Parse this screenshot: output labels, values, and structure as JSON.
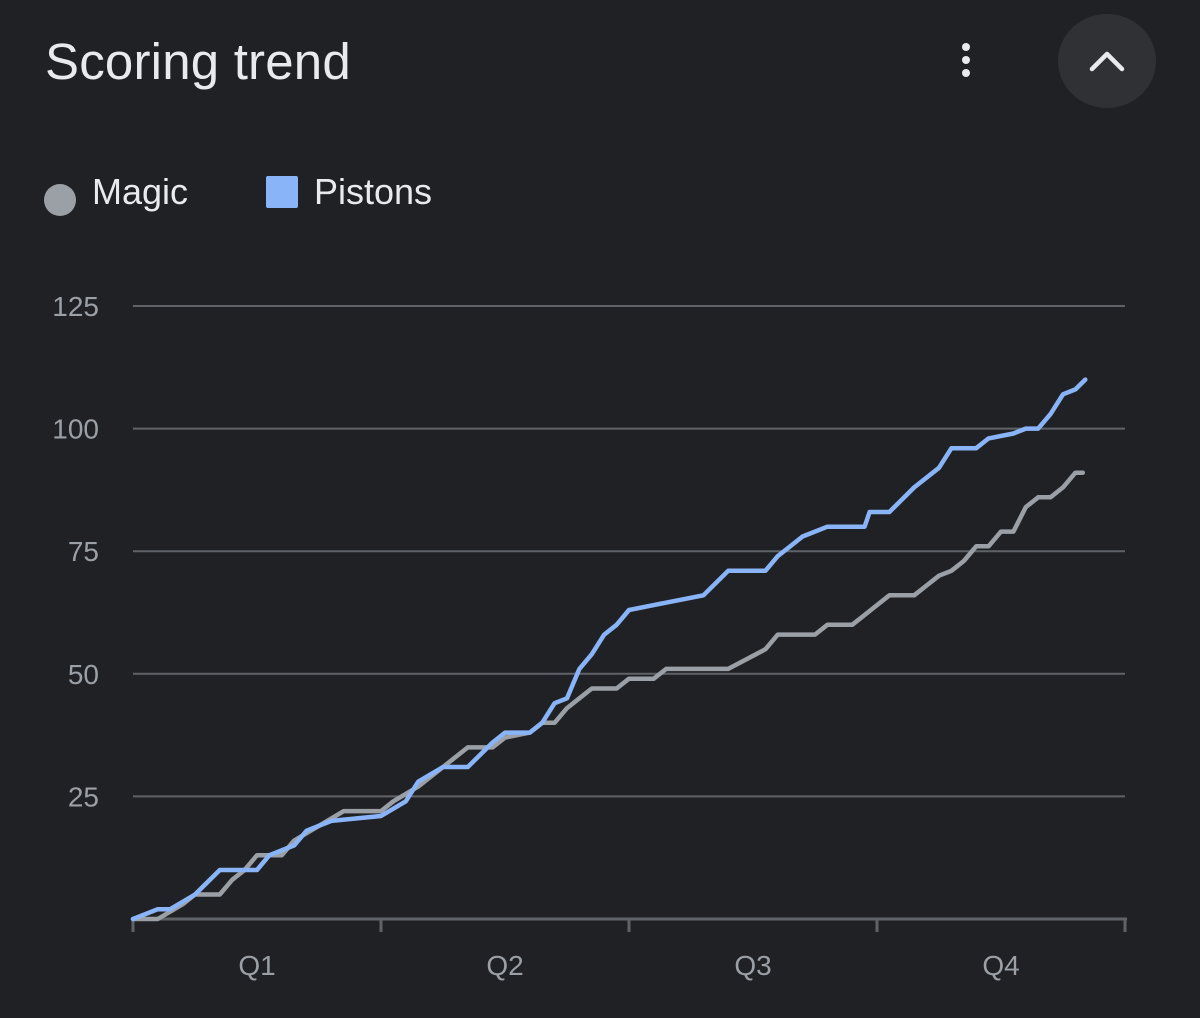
{
  "header": {
    "title": "Scoring trend",
    "menu_icon": "more-vert-icon",
    "collapse_icon": "chevron-up-icon"
  },
  "colors": {
    "background": "#202124",
    "magic": "#9aa0a6",
    "pistons": "#8ab4f8",
    "grid": "#5f6368"
  },
  "chart_data": {
    "type": "line",
    "title": "Scoring trend",
    "legend": {
      "placement": "top-left"
    },
    "categories": [
      "Q1",
      "Q2",
      "Q3",
      "Q4"
    ],
    "xlim": [
      0,
      4
    ],
    "ylim": [
      0,
      125
    ],
    "yticks": [
      25,
      50,
      75,
      100,
      125
    ],
    "grid": true,
    "series": [
      {
        "name": "Magic",
        "marker": "circle",
        "color": "#9aa0a6",
        "points": [
          [
            0,
            0
          ],
          [
            0.1,
            0
          ],
          [
            0.2,
            3
          ],
          [
            0.25,
            5
          ],
          [
            0.35,
            5
          ],
          [
            0.4,
            8
          ],
          [
            0.45,
            10
          ],
          [
            0.5,
            13
          ],
          [
            0.6,
            13
          ],
          [
            0.65,
            16
          ],
          [
            0.75,
            19
          ],
          [
            0.85,
            22
          ],
          [
            1.0,
            22
          ],
          [
            1.05,
            24
          ],
          [
            1.15,
            27
          ],
          [
            1.25,
            31
          ],
          [
            1.35,
            35
          ],
          [
            1.45,
            35
          ],
          [
            1.5,
            37
          ],
          [
            1.6,
            38
          ],
          [
            1.65,
            40
          ],
          [
            1.7,
            40
          ],
          [
            1.75,
            43
          ],
          [
            1.8,
            45
          ],
          [
            1.85,
            47
          ],
          [
            1.95,
            47
          ],
          [
            2.0,
            49
          ],
          [
            2.1,
            49
          ],
          [
            2.15,
            51
          ],
          [
            2.4,
            51
          ],
          [
            2.55,
            55
          ],
          [
            2.6,
            58
          ],
          [
            2.75,
            58
          ],
          [
            2.8,
            60
          ],
          [
            2.9,
            60
          ],
          [
            2.95,
            62
          ],
          [
            3.0,
            64
          ],
          [
            3.05,
            66
          ],
          [
            3.15,
            66
          ],
          [
            3.2,
            68
          ],
          [
            3.25,
            70
          ],
          [
            3.3,
            71
          ],
          [
            3.35,
            73
          ],
          [
            3.4,
            76
          ],
          [
            3.45,
            76
          ],
          [
            3.5,
            79
          ],
          [
            3.55,
            79
          ],
          [
            3.6,
            84
          ],
          [
            3.65,
            86
          ],
          [
            3.7,
            86
          ],
          [
            3.75,
            88
          ],
          [
            3.8,
            91
          ],
          [
            3.83,
            91
          ]
        ]
      },
      {
        "name": "Pistons",
        "marker": "square",
        "color": "#8ab4f8",
        "points": [
          [
            0,
            0
          ],
          [
            0.1,
            2
          ],
          [
            0.15,
            2
          ],
          [
            0.25,
            5
          ],
          [
            0.35,
            10
          ],
          [
            0.5,
            10
          ],
          [
            0.55,
            13
          ],
          [
            0.65,
            15
          ],
          [
            0.7,
            18
          ],
          [
            0.8,
            20
          ],
          [
            1.0,
            21
          ],
          [
            1.1,
            24
          ],
          [
            1.15,
            28
          ],
          [
            1.25,
            31
          ],
          [
            1.35,
            31
          ],
          [
            1.45,
            36
          ],
          [
            1.5,
            38
          ],
          [
            1.6,
            38
          ],
          [
            1.65,
            40
          ],
          [
            1.7,
            44
          ],
          [
            1.75,
            45
          ],
          [
            1.8,
            51
          ],
          [
            1.85,
            54
          ],
          [
            1.9,
            58
          ],
          [
            1.95,
            60
          ],
          [
            2.0,
            63
          ],
          [
            2.1,
            64
          ],
          [
            2.3,
            66
          ],
          [
            2.4,
            71
          ],
          [
            2.55,
            71
          ],
          [
            2.6,
            74
          ],
          [
            2.7,
            78
          ],
          [
            2.8,
            80
          ],
          [
            2.95,
            80
          ],
          [
            2.97,
            83
          ],
          [
            3.05,
            83
          ],
          [
            3.15,
            88
          ],
          [
            3.25,
            92
          ],
          [
            3.3,
            96
          ],
          [
            3.4,
            96
          ],
          [
            3.45,
            98
          ],
          [
            3.55,
            99
          ],
          [
            3.6,
            100
          ],
          [
            3.65,
            100
          ],
          [
            3.7,
            103
          ],
          [
            3.75,
            107
          ],
          [
            3.8,
            108
          ],
          [
            3.84,
            110
          ]
        ]
      }
    ]
  }
}
